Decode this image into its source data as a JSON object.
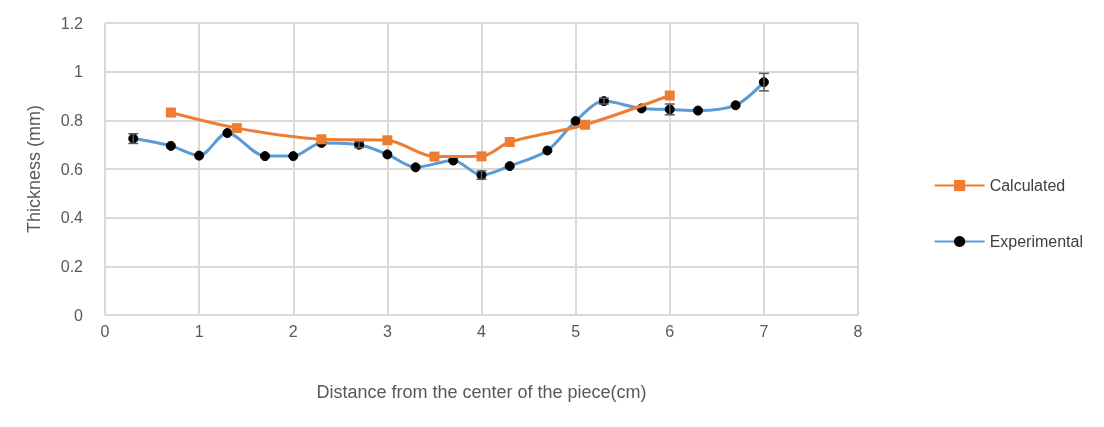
{
  "chart_data": {
    "type": "line",
    "xlabel": "Distance from the center of the piece(cm)",
    "ylabel": "Thickness (mm)",
    "xlim": [
      0,
      8
    ],
    "xticks": [
      0,
      1,
      2,
      3,
      4,
      5,
      6,
      7,
      8
    ],
    "ylim": [
      0,
      1.2
    ],
    "yticks": [
      0,
      0.2,
      0.4,
      0.6,
      0.8,
      1,
      1.2
    ],
    "grid": true,
    "legend": "right",
    "series": [
      {
        "name": "Calculated",
        "color": "#ed7d31",
        "marker": "square",
        "x": [
          0.7,
          1.4,
          2.3,
          3,
          3.5,
          4,
          4.3,
          5.1,
          6
        ],
        "values": [
          0.832,
          0.768,
          0.722,
          0.718,
          0.651,
          0.652,
          0.711,
          0.782,
          0.902
        ]
      },
      {
        "name": "Experimental",
        "color": "#5b9bd5",
        "marker": "circle",
        "x": [
          0.3,
          0.7,
          1,
          1.3,
          1.7,
          2,
          2.3,
          2.7,
          3,
          3.3,
          3.7,
          4,
          4.3,
          4.7,
          5,
          5.3,
          5.7,
          6,
          6.3,
          6.7,
          7
        ],
        "values": [
          0.725,
          0.695,
          0.655,
          0.748,
          0.653,
          0.653,
          0.707,
          0.7,
          0.66,
          0.607,
          0.635,
          0.575,
          0.612,
          0.676,
          0.797,
          0.879,
          0.849,
          0.845,
          0.84,
          0.862,
          0.957
        ],
        "errors": [
          0.02,
          null,
          null,
          null,
          null,
          null,
          null,
          0.012,
          null,
          null,
          null,
          0.017,
          null,
          null,
          null,
          0.012,
          null,
          0.022,
          null,
          null,
          0.036
        ]
      }
    ]
  }
}
